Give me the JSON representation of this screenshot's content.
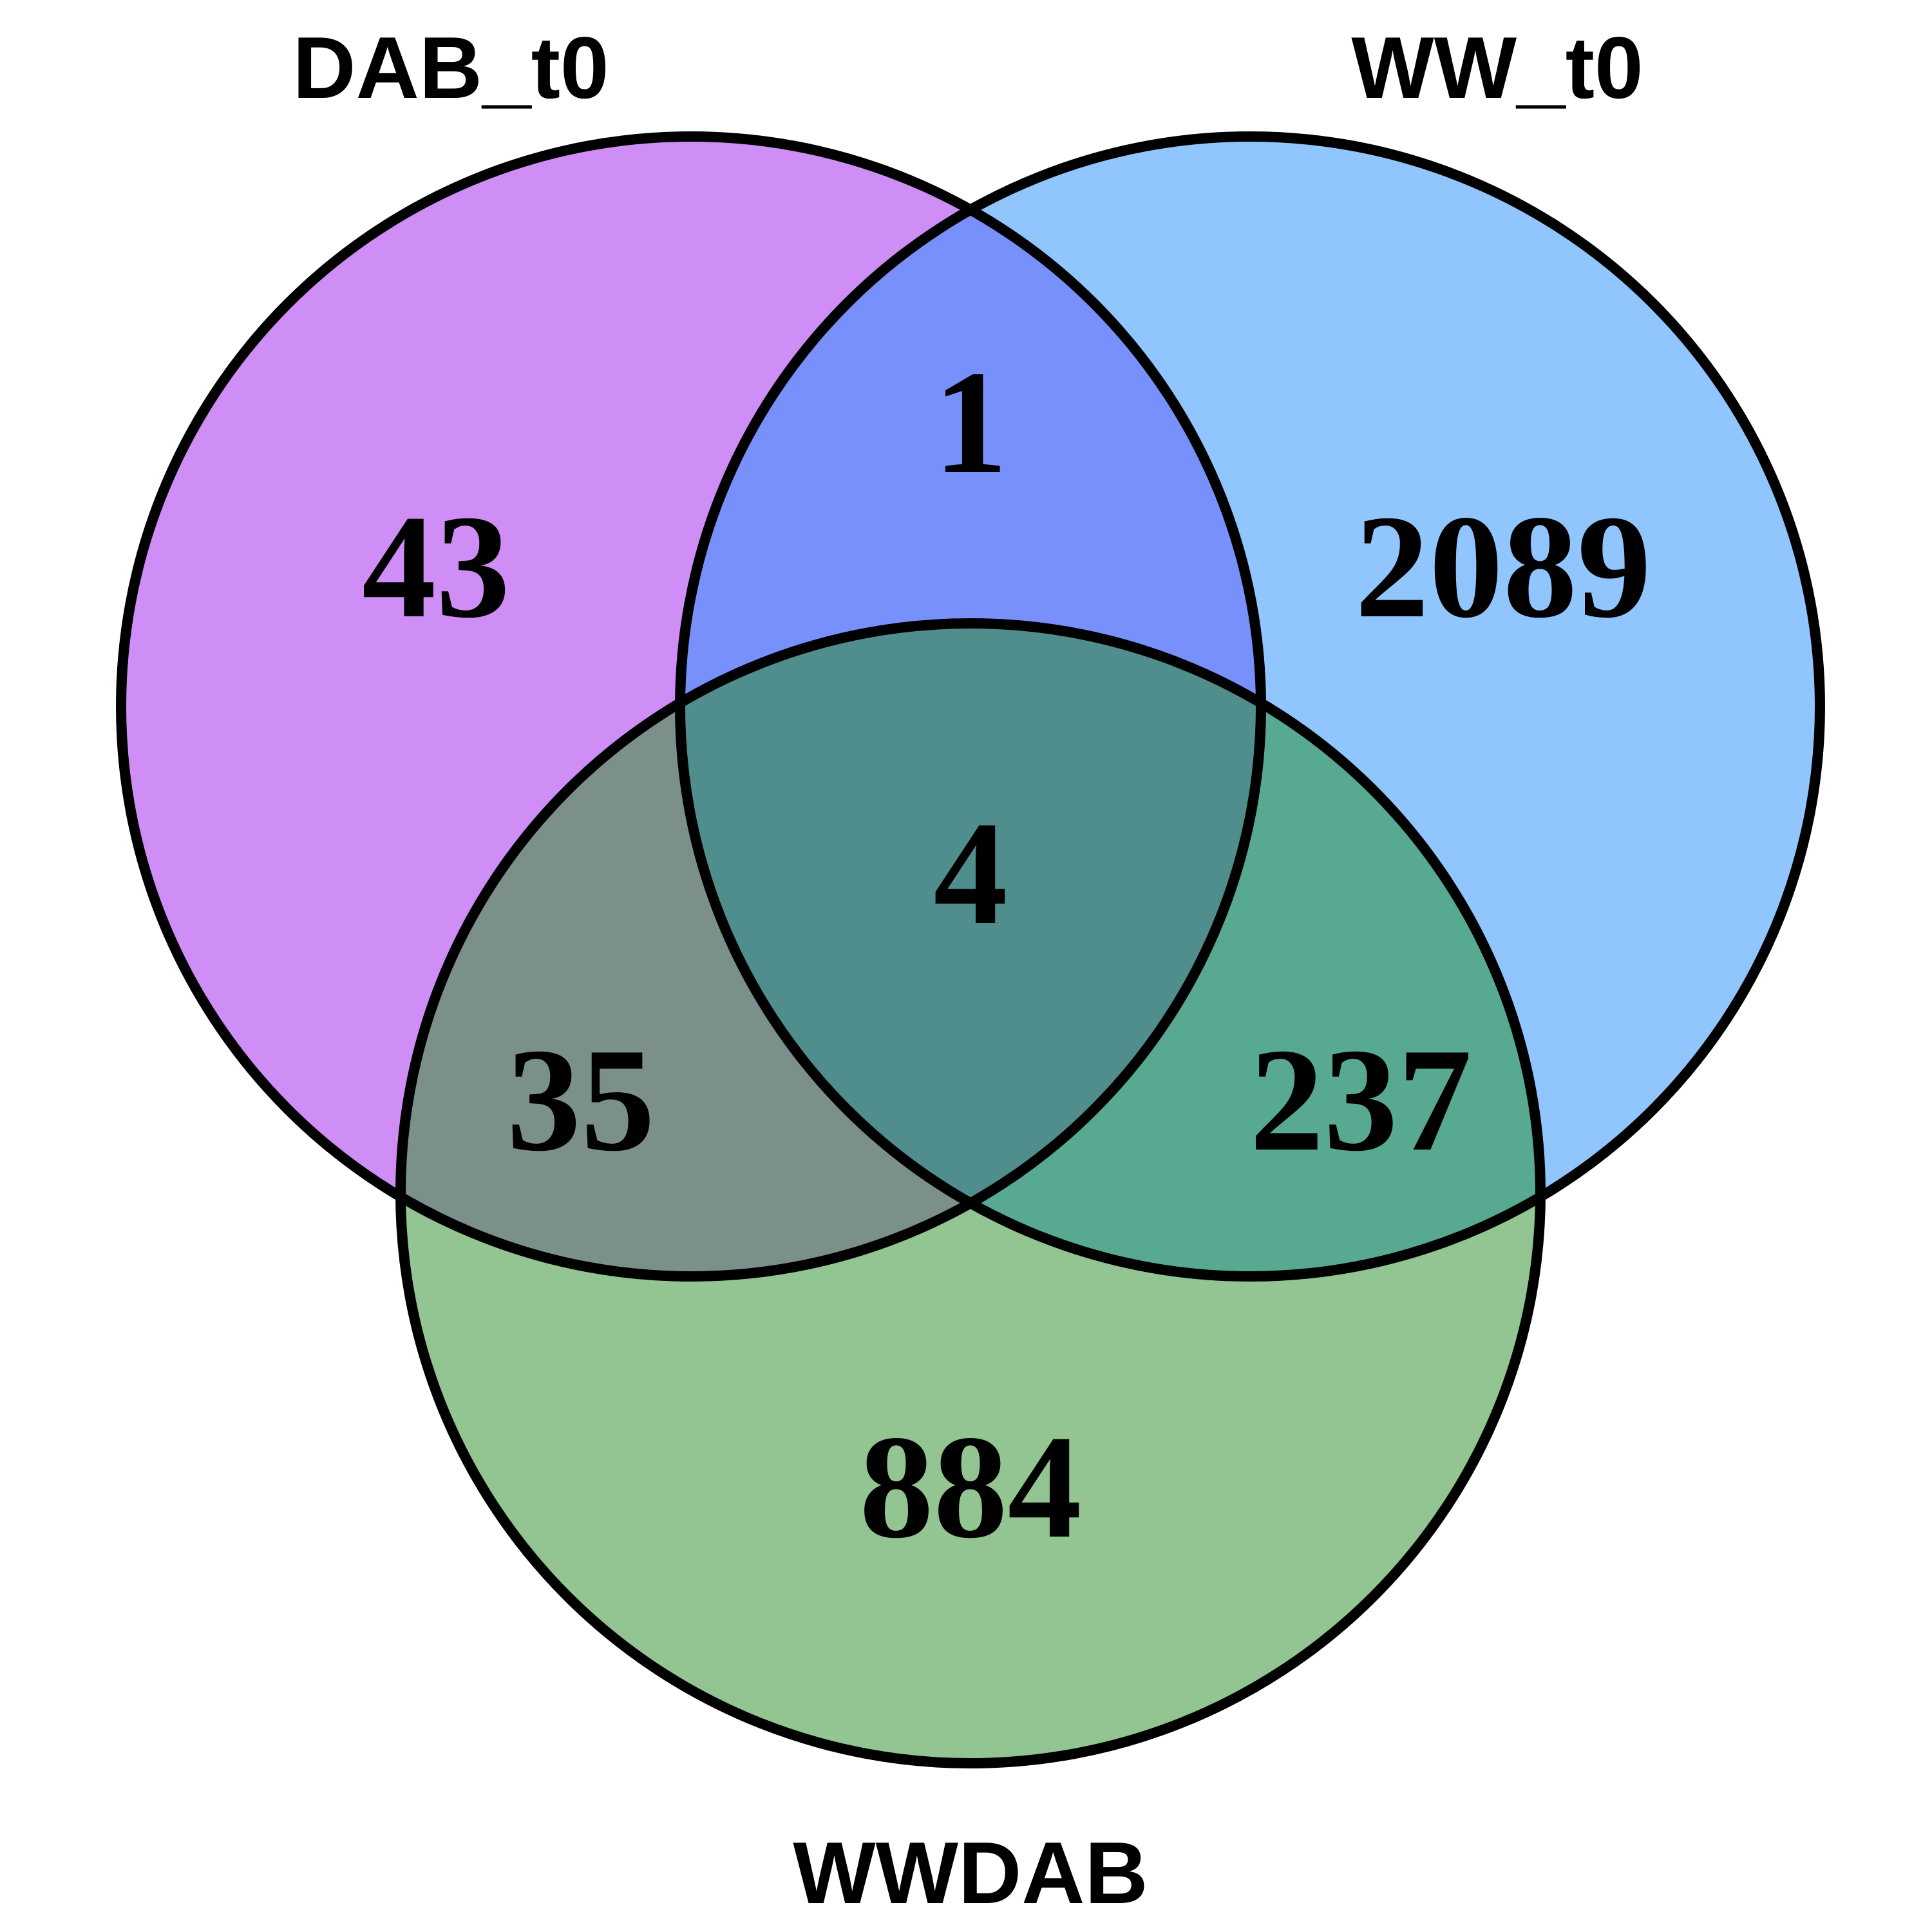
{
  "sets": [
    {
      "id": "A",
      "label": "DAB_t0",
      "color": "#CE8EF6"
    },
    {
      "id": "B",
      "label": "WW_t0",
      "color": "#90C6FD"
    },
    {
      "id": "C",
      "label": "WWDAB",
      "color": "#92C591"
    }
  ],
  "regions": {
    "A_only": {
      "count": "43",
      "color": "#CE8EF6"
    },
    "B_only": {
      "count": "2089",
      "color": "#90C6FD"
    },
    "C_only": {
      "count": "884",
      "color": "#92C591"
    },
    "A_B": {
      "count": "1",
      "color": "#7890FB"
    },
    "A_C": {
      "count": "35",
      "color": "#7B8F8B"
    },
    "B_C": {
      "count": "237",
      "color": "#58A991"
    },
    "A_B_C": {
      "count": "4",
      "color": "#508D8D"
    }
  }
}
